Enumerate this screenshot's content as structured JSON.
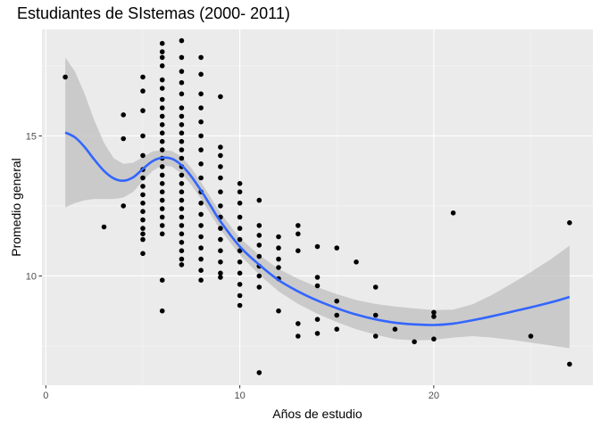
{
  "chart_data": {
    "type": "scatter",
    "title": "Estudiantes de SIstemas (2000- 2011)",
    "xlabel": "Años de estudio",
    "ylabel": "Promedio general",
    "xlim": [
      -0.2,
      28.2
    ],
    "ylim": [
      6.1,
      18.8
    ],
    "x_ticks": [
      0,
      10,
      20
    ],
    "y_ticks": [
      10,
      15
    ],
    "grid": true,
    "panel_background": "#ebebeb",
    "point_color": "#000000",
    "smooth_color": "#3366ff",
    "ribbon_color": "#bfbfbf",
    "points": [
      [
        1,
        17.1
      ],
      [
        3,
        11.75
      ],
      [
        4,
        15.75
      ],
      [
        4,
        14.9
      ],
      [
        4,
        12.5
      ],
      [
        5,
        17.1
      ],
      [
        5,
        16.6
      ],
      [
        5,
        15.9
      ],
      [
        5,
        15.0
      ],
      [
        5,
        14.3
      ],
      [
        5,
        13.8
      ],
      [
        5,
        13.5
      ],
      [
        5,
        13.2
      ],
      [
        5,
        12.9
      ],
      [
        5,
        12.6
      ],
      [
        5,
        12.3
      ],
      [
        5,
        12.0
      ],
      [
        5,
        11.7
      ],
      [
        5,
        11.5
      ],
      [
        5,
        11.3
      ],
      [
        5,
        10.8
      ],
      [
        6,
        18.3
      ],
      [
        6,
        18.0
      ],
      [
        6,
        17.8
      ],
      [
        6,
        17.5
      ],
      [
        6,
        17.0
      ],
      [
        6,
        16.7
      ],
      [
        6,
        16.3
      ],
      [
        6,
        16.0
      ],
      [
        6,
        15.7
      ],
      [
        6,
        15.4
      ],
      [
        6,
        15.1
      ],
      [
        6,
        14.8
      ],
      [
        6,
        14.5
      ],
      [
        6,
        14.2
      ],
      [
        6,
        13.9
      ],
      [
        6,
        13.6
      ],
      [
        6,
        13.3
      ],
      [
        6,
        13.0
      ],
      [
        6,
        12.7
      ],
      [
        6,
        12.4
      ],
      [
        6,
        12.1
      ],
      [
        6,
        11.8
      ],
      [
        6,
        11.5
      ],
      [
        6,
        9.85
      ],
      [
        6,
        8.75
      ],
      [
        7,
        18.4
      ],
      [
        7,
        17.8
      ],
      [
        7,
        17.3
      ],
      [
        7,
        16.9
      ],
      [
        7,
        16.5
      ],
      [
        7,
        16.0
      ],
      [
        7,
        15.7
      ],
      [
        7,
        15.4
      ],
      [
        7,
        15.1
      ],
      [
        7,
        14.8
      ],
      [
        7,
        14.5
      ],
      [
        7,
        14.2
      ],
      [
        7,
        13.9
      ],
      [
        7,
        13.6
      ],
      [
        7,
        13.3
      ],
      [
        7,
        13.0
      ],
      [
        7,
        12.7
      ],
      [
        7,
        12.4
      ],
      [
        7,
        12.1
      ],
      [
        7,
        11.8
      ],
      [
        7,
        11.5
      ],
      [
        7,
        11.2
      ],
      [
        7,
        10.9
      ],
      [
        7,
        10.6
      ],
      [
        7,
        10.4
      ],
      [
        8,
        17.8
      ],
      [
        8,
        17.2
      ],
      [
        8,
        16.5
      ],
      [
        8,
        16.0
      ],
      [
        8,
        15.5
      ],
      [
        8,
        15.0
      ],
      [
        8,
        14.5
      ],
      [
        8,
        14.0
      ],
      [
        8,
        13.5
      ],
      [
        8,
        13.0
      ],
      [
        8,
        12.6
      ],
      [
        8,
        12.2
      ],
      [
        8,
        11.8
      ],
      [
        8,
        11.4
      ],
      [
        8,
        11.0
      ],
      [
        8,
        10.6
      ],
      [
        8,
        10.2
      ],
      [
        8,
        9.85
      ],
      [
        9,
        16.4
      ],
      [
        9,
        14.6
      ],
      [
        9,
        14.3
      ],
      [
        9,
        13.9
      ],
      [
        9,
        13.5
      ],
      [
        9,
        13.0
      ],
      [
        9,
        12.5
      ],
      [
        9,
        12.1
      ],
      [
        9,
        11.7
      ],
      [
        9,
        11.3
      ],
      [
        9,
        10.9
      ],
      [
        9,
        10.5
      ],
      [
        9,
        10.1
      ],
      [
        9,
        9.95
      ],
      [
        10,
        13.3
      ],
      [
        10,
        13.0
      ],
      [
        10,
        12.6
      ],
      [
        10,
        12.1
      ],
      [
        10,
        11.7
      ],
      [
        10,
        11.3
      ],
      [
        10,
        10.9
      ],
      [
        10,
        10.5
      ],
      [
        10,
        10.1
      ],
      [
        10,
        9.7
      ],
      [
        10,
        9.3
      ],
      [
        10,
        8.95
      ],
      [
        11,
        12.7
      ],
      [
        11,
        11.8
      ],
      [
        11,
        11.45
      ],
      [
        11,
        11.1
      ],
      [
        11,
        10.7
      ],
      [
        11,
        10.35
      ],
      [
        11,
        10.0
      ],
      [
        11,
        9.6
      ],
      [
        11,
        6.55
      ],
      [
        12,
        11.4
      ],
      [
        12,
        11.0
      ],
      [
        12,
        10.6
      ],
      [
        12,
        10.3
      ],
      [
        12,
        9.9
      ],
      [
        12,
        8.75
      ],
      [
        13,
        11.8
      ],
      [
        13,
        11.5
      ],
      [
        13,
        10.9
      ],
      [
        13,
        8.3
      ],
      [
        13,
        7.85
      ],
      [
        14,
        11.05
      ],
      [
        14,
        9.95
      ],
      [
        14,
        9.65
      ],
      [
        14,
        8.45
      ],
      [
        14,
        7.95
      ],
      [
        15,
        11.0
      ],
      [
        15,
        9.1
      ],
      [
        15,
        8.6
      ],
      [
        15,
        8.1
      ],
      [
        16,
        10.5
      ],
      [
        17,
        9.6
      ],
      [
        17,
        8.6
      ],
      [
        17,
        7.85
      ],
      [
        18,
        8.1
      ],
      [
        19,
        7.65
      ],
      [
        20,
        8.7
      ],
      [
        20,
        8.55
      ],
      [
        20,
        7.75
      ],
      [
        21,
        12.25
      ],
      [
        25,
        7.85
      ],
      [
        27,
        11.9
      ],
      [
        27,
        6.85
      ]
    ],
    "smooth": {
      "x": [
        1,
        1.5,
        2,
        2.5,
        3,
        3.5,
        4,
        4.5,
        5,
        5.5,
        6,
        6.5,
        7,
        7.5,
        8,
        8.5,
        9,
        10,
        11,
        12,
        13,
        14,
        15,
        16,
        17,
        18,
        19,
        20,
        21,
        22,
        23,
        24,
        25,
        26,
        27
      ],
      "y": [
        15.12,
        14.95,
        14.6,
        14.15,
        13.75,
        13.48,
        13.4,
        13.52,
        13.82,
        14.1,
        14.22,
        14.18,
        13.95,
        13.55,
        13.05,
        12.5,
        11.95,
        11.05,
        10.4,
        9.85,
        9.45,
        9.12,
        8.85,
        8.62,
        8.45,
        8.33,
        8.27,
        8.25,
        8.3,
        8.42,
        8.56,
        8.72,
        8.88,
        9.05,
        9.25
      ],
      "lower": [
        12.45,
        12.6,
        12.7,
        12.75,
        12.75,
        12.75,
        12.8,
        13.0,
        13.4,
        13.75,
        13.95,
        13.9,
        13.65,
        13.25,
        12.75,
        12.2,
        11.65,
        10.75,
        10.05,
        9.45,
        9.0,
        8.65,
        8.35,
        8.1,
        7.9,
        7.75,
        7.7,
        7.72,
        7.8,
        7.85,
        7.8,
        7.72,
        7.62,
        7.52,
        7.42
      ],
      "upper": [
        17.8,
        17.3,
        16.5,
        15.55,
        14.75,
        14.2,
        14.0,
        14.04,
        14.24,
        14.45,
        14.49,
        14.46,
        14.25,
        13.85,
        13.35,
        12.8,
        12.25,
        11.35,
        10.75,
        10.25,
        9.9,
        9.6,
        9.35,
        9.14,
        9.0,
        8.91,
        8.84,
        8.78,
        8.8,
        8.99,
        9.32,
        9.72,
        10.14,
        10.58,
        11.08
      ]
    }
  }
}
